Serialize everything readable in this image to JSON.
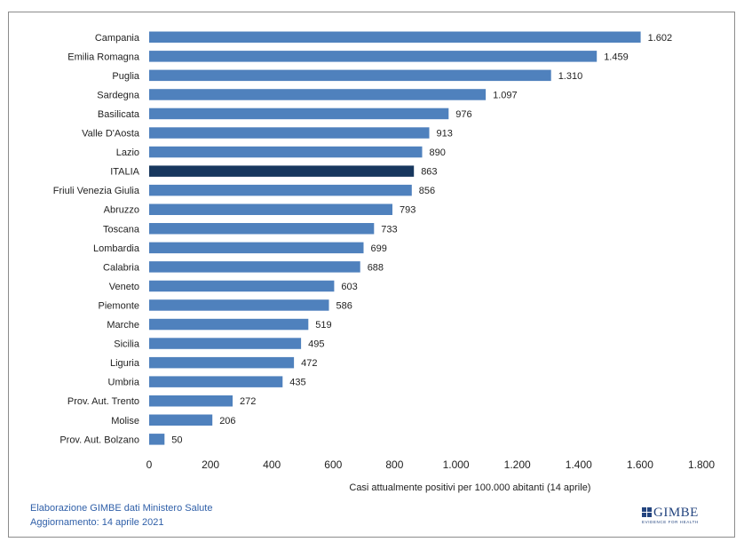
{
  "chart_data": {
    "type": "bar",
    "orientation": "horizontal",
    "categories": [
      "Campania",
      "Emilia Romagna",
      "Puglia",
      "Sardegna",
      "Basilicata",
      "Valle D'Aosta",
      "Lazio",
      "ITALIA",
      "Friuli Venezia Giulia",
      "Abruzzo",
      "Toscana",
      "Lombardia",
      "Calabria",
      "Veneto",
      "Piemonte",
      "Marche",
      "Sicilia",
      "Liguria",
      "Umbria",
      "Prov. Aut. Trento",
      "Molise",
      "Prov. Aut. Bolzano"
    ],
    "values": [
      1602,
      1459,
      1310,
      1097,
      976,
      913,
      890,
      863,
      856,
      793,
      733,
      699,
      688,
      603,
      586,
      519,
      495,
      472,
      435,
      272,
      206,
      50
    ],
    "value_labels": [
      "1.602",
      "1.459",
      "1.310",
      "1.097",
      "976",
      "913",
      "890",
      "863",
      "856",
      "793",
      "733",
      "699",
      "688",
      "603",
      "586",
      "519",
      "495",
      "472",
      "435",
      "272",
      "206",
      "50"
    ],
    "highlight_category": "ITALIA",
    "xlim": [
      0,
      1800
    ],
    "xticks": [
      0,
      200,
      400,
      600,
      800,
      1000,
      1200,
      1400,
      1600,
      1800
    ],
    "xtick_labels": [
      "0",
      "200",
      "400",
      "600",
      "800",
      "1.000",
      "1.200",
      "1.400",
      "1.600",
      "1.800"
    ],
    "xlabel": "Casi attualmente positivi per 100.000 abitanti (14 aprile)",
    "ylabel": "",
    "title": "",
    "grid": false,
    "colors": {
      "bar": "#4f81bd",
      "highlight": "#17375e"
    }
  },
  "footer": {
    "line1": "Elaborazione GIMBE dati Ministero Salute",
    "line2": "Aggiornamento: 14 aprile 2021"
  },
  "logo": {
    "word": "GIMBE",
    "tagline": "EVIDENCE FOR HEALTH"
  }
}
